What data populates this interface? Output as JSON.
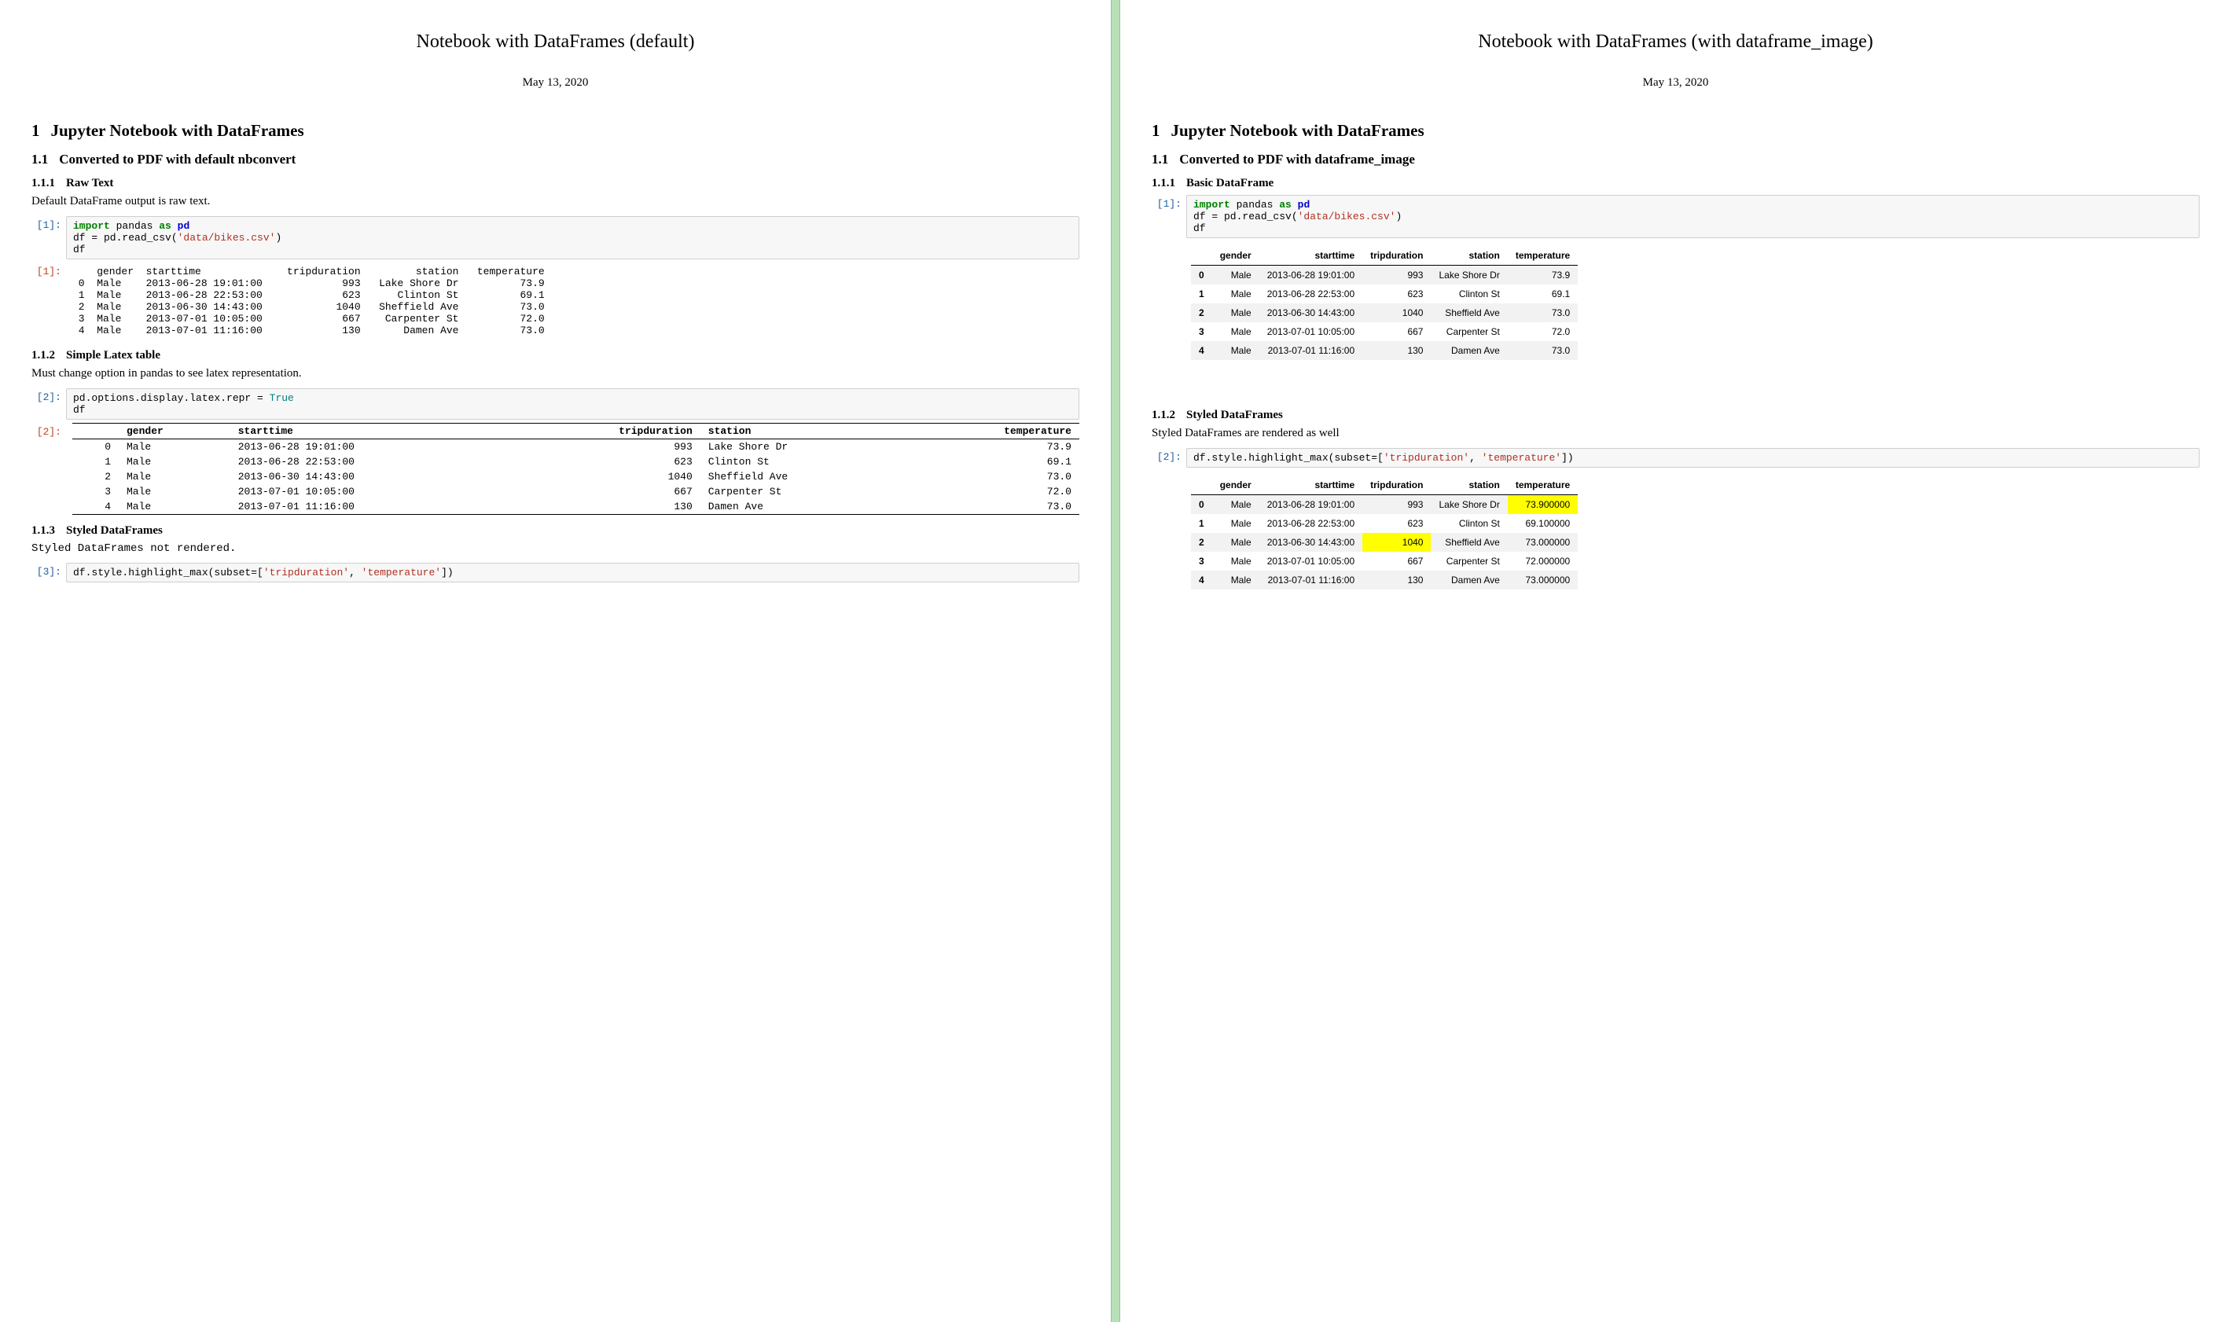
{
  "left": {
    "title": "Notebook with DataFrames (default)",
    "date": "May 13, 2020",
    "h1_num": "1",
    "h1": "Jupyter Notebook with DataFrames",
    "h2_num": "1.1",
    "h2": "Converted to PDF with default nbconvert",
    "h3a_num": "1.1.1",
    "h3a": "Raw Text",
    "para1": "Default DataFrame output is raw text.",
    "code1": {
      "prompt": "[1]:",
      "line1a": "import",
      "line1b": " pandas ",
      "line1c": "as",
      "line1d": " pd",
      "line2a": "df = pd.read_csv(",
      "line2b": "'data/bikes.csv'",
      "line2c": ")",
      "line3": "df"
    },
    "out1": {
      "prompt": "[1]:",
      "columns": [
        "",
        "gender",
        "starttime",
        "tripduration",
        "station",
        "temperature"
      ],
      "rows": [
        [
          "0",
          "Male",
          "2013-06-28 19:01:00",
          "993",
          "Lake Shore Dr",
          "73.9"
        ],
        [
          "1",
          "Male",
          "2013-06-28 22:53:00",
          "623",
          "Clinton St",
          "69.1"
        ],
        [
          "2",
          "Male",
          "2013-06-30 14:43:00",
          "1040",
          "Sheffield Ave",
          "73.0"
        ],
        [
          "3",
          "Male",
          "2013-07-01 10:05:00",
          "667",
          "Carpenter St",
          "72.0"
        ],
        [
          "4",
          "Male",
          "2013-07-01 11:16:00",
          "130",
          "Damen Ave",
          "73.0"
        ]
      ]
    },
    "h3b_num": "1.1.2",
    "h3b": "Simple Latex table",
    "para2": "Must change option in pandas to see latex representation.",
    "code2": {
      "prompt": "[2]:",
      "line1a": "pd.options.display.latex.repr = ",
      "line1b": "True",
      "line2": "df"
    },
    "out2": {
      "prompt": "[2]:",
      "columns": [
        "",
        "gender",
        "starttime",
        "tripduration",
        "station",
        "temperature"
      ],
      "rows": [
        [
          "0",
          "Male",
          "2013-06-28 19:01:00",
          "993",
          "Lake Shore Dr",
          "73.9"
        ],
        [
          "1",
          "Male",
          "2013-06-28 22:53:00",
          "623",
          "Clinton St",
          "69.1"
        ],
        [
          "2",
          "Male",
          "2013-06-30 14:43:00",
          "1040",
          "Sheffield Ave",
          "73.0"
        ],
        [
          "3",
          "Male",
          "2013-07-01 10:05:00",
          "667",
          "Carpenter St",
          "72.0"
        ],
        [
          "4",
          "Male",
          "2013-07-01 11:16:00",
          "130",
          "Damen Ave",
          "73.0"
        ]
      ]
    },
    "h3c_num": "1.1.3",
    "h3c": "Styled DataFrames",
    "para3": "Styled DataFrames not rendered.",
    "code3": {
      "prompt": "[3]:",
      "line1a": "df.style.highlight_max(subset=[",
      "line1b": "'tripduration'",
      "line1c": ", ",
      "line1d": "'temperature'",
      "line1e": "])"
    }
  },
  "right": {
    "title": "Notebook with DataFrames (with dataframe_image)",
    "date": "May 13, 2020",
    "h1_num": "1",
    "h1": "Jupyter Notebook with DataFrames",
    "h2_num": "1.1",
    "h2": "Converted to PDF with dataframe_image",
    "h3a_num": "1.1.1",
    "h3a": "Basic DataFrame",
    "code1": {
      "prompt": "[1]:",
      "line1a": "import",
      "line1b": " pandas ",
      "line1c": "as",
      "line1d": " pd",
      "line2a": "df = pd.read_csv(",
      "line2b": "'data/bikes.csv'",
      "line2c": ")",
      "line3": "df"
    },
    "table1": {
      "columns": [
        "",
        "gender",
        "starttime",
        "tripduration",
        "station",
        "temperature"
      ],
      "rows": [
        [
          "0",
          "Male",
          "2013-06-28 19:01:00",
          "993",
          "Lake Shore Dr",
          "73.9"
        ],
        [
          "1",
          "Male",
          "2013-06-28 22:53:00",
          "623",
          "Clinton St",
          "69.1"
        ],
        [
          "2",
          "Male",
          "2013-06-30 14:43:00",
          "1040",
          "Sheffield Ave",
          "73.0"
        ],
        [
          "3",
          "Male",
          "2013-07-01 10:05:00",
          "667",
          "Carpenter St",
          "72.0"
        ],
        [
          "4",
          "Male",
          "2013-07-01 11:16:00",
          "130",
          "Damen Ave",
          "73.0"
        ]
      ],
      "highlight_color": "#ffff00",
      "stripe_color": "#f2f2f2"
    },
    "h3b_num": "1.1.2",
    "h3b": "Styled DataFrames",
    "para2": "Styled DataFrames are rendered as well",
    "code2": {
      "prompt": "[2]:",
      "line1a": "df.style.highlight_max(subset=[",
      "line1b": "'tripduration'",
      "line1c": ", ",
      "line1d": "'temperature'",
      "line1e": "])"
    },
    "table2": {
      "columns": [
        "",
        "gender",
        "starttime",
        "tripduration",
        "station",
        "temperature"
      ],
      "rows": [
        [
          "0",
          "Male",
          "2013-06-28 19:01:00",
          "993",
          "Lake Shore Dr",
          "73.900000"
        ],
        [
          "1",
          "Male",
          "2013-06-28 22:53:00",
          "623",
          "Clinton St",
          "69.100000"
        ],
        [
          "2",
          "Male",
          "2013-06-30 14:43:00",
          "1040",
          "Sheffield Ave",
          "73.000000"
        ],
        [
          "3",
          "Male",
          "2013-07-01 10:05:00",
          "667",
          "Carpenter St",
          "72.000000"
        ],
        [
          "4",
          "Male",
          "2013-07-01 11:16:00",
          "130",
          "Damen Ave",
          "73.000000"
        ]
      ],
      "highlights": [
        {
          "row": 0,
          "col": 5
        },
        {
          "row": 2,
          "col": 3
        }
      ],
      "highlight_color": "#ffff00",
      "stripe_color": "#f2f2f2"
    }
  },
  "colors": {
    "divider": "#b8e0b8",
    "code_bg": "#f7f7f7",
    "code_border": "#cfcfcf",
    "highlight": "#ffff00",
    "stripe": "#f2f2f2",
    "prompt_in": "#2060a0",
    "prompt_out": "#c04020",
    "kw_green": "#008000",
    "kw_blue": "#0000cc",
    "kw_red": "#b03020",
    "kw_teal": "#008080"
  }
}
